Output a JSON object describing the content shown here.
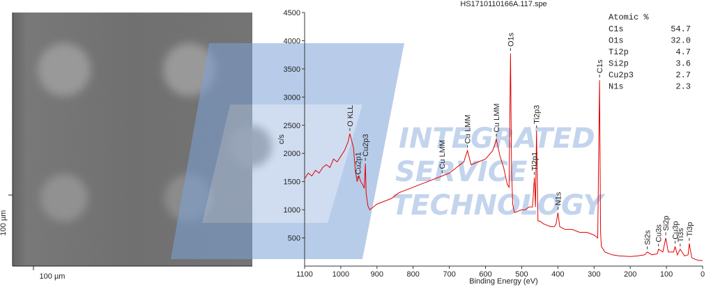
{
  "image_panel": {
    "scale_y_label": "100 µm",
    "scale_x_label": "100 µm"
  },
  "watermark": {
    "lines": [
      "INTEGRATED",
      "SERVICE",
      "TECHNOLOGY"
    ]
  },
  "chart_data": {
    "type": "line",
    "title": "HS1710110166A.117.spe",
    "x_label": "Binding Energy (eV)",
    "y_label": "c/s",
    "xlim": [
      1100,
      0
    ],
    "ylim": [
      0,
      4500
    ],
    "xticks": [
      1100,
      1000,
      900,
      800,
      700,
      600,
      500,
      400,
      300,
      200,
      100,
      0
    ],
    "yticks": [
      500,
      1000,
      1500,
      2000,
      2500,
      3000,
      3500,
      4000,
      4500
    ],
    "x": [
      1100,
      1090,
      1080,
      1070,
      1060,
      1050,
      1040,
      1030,
      1020,
      1010,
      1000,
      990,
      980,
      975,
      965,
      960,
      955,
      950,
      945,
      940,
      935,
      932,
      930,
      925,
      920,
      910,
      900,
      880,
      860,
      840,
      820,
      800,
      780,
      760,
      740,
      720,
      700,
      680,
      660,
      650,
      640,
      620,
      600,
      580,
      570,
      560,
      550,
      540,
      535,
      531,
      528,
      525,
      520,
      500,
      490,
      480,
      470,
      465,
      462,
      459,
      455,
      450,
      440,
      420,
      410,
      405,
      400,
      395,
      380,
      360,
      340,
      320,
      300,
      290,
      285,
      282,
      280,
      270,
      250,
      230,
      200,
      180,
      160,
      153,
      140,
      125,
      122,
      110,
      102,
      95,
      80,
      76,
      70,
      62,
      50,
      40,
      37,
      30,
      20,
      10,
      0
    ],
    "series": [
      {
        "name": "spectrum",
        "color": "#e00000",
        "values": [
          1550,
          1650,
          1600,
          1700,
          1650,
          1750,
          1800,
          1750,
          1900,
          1850,
          1950,
          2050,
          2200,
          2350,
          2100,
          1700,
          1500,
          1600,
          1500,
          1450,
          1380,
          1820,
          1300,
          1070,
          1000,
          1050,
          1100,
          1150,
          1200,
          1300,
          1350,
          1400,
          1450,
          1500,
          1550,
          1600,
          1650,
          1750,
          1850,
          2050,
          1800,
          1850,
          1900,
          2050,
          2250,
          1950,
          1750,
          1450,
          1400,
          3770,
          1700,
          1100,
          950,
          1000,
          1000,
          1050,
          1050,
          1570,
          1050,
          2400,
          800,
          800,
          750,
          700,
          700,
          750,
          950,
          700,
          650,
          650,
          600,
          600,
          550,
          500,
          3300,
          600,
          350,
          250,
          200,
          180,
          170,
          180,
          200,
          250,
          200,
          220,
          300,
          250,
          500,
          250,
          250,
          350,
          200,
          300,
          180,
          200,
          400,
          150,
          120,
          100,
          100
        ]
      }
    ],
    "peaks": [
      {
        "label": "O KLL",
        "x": 975
      },
      {
        "label": "Cu2p1",
        "x": 953
      },
      {
        "label": "Cu2p3",
        "x": 932
      },
      {
        "label": "Cu LMM",
        "x": 720
      },
      {
        "label": "Cu LMM",
        "x": 650
      },
      {
        "label": "Cu LMM",
        "x": 570
      },
      {
        "label": "O1s",
        "x": 531
      },
      {
        "label": "Ti2p3",
        "x": 459
      },
      {
        "label": "Ti2p1",
        "x": 465
      },
      {
        "label": "N1s",
        "x": 400
      },
      {
        "label": "C1s",
        "x": 285
      },
      {
        "label": "Si2s",
        "x": 153
      },
      {
        "label": "Cu3s",
        "x": 122
      },
      {
        "label": "Si2p",
        "x": 102
      },
      {
        "label": "Cu3p",
        "x": 76
      },
      {
        "label": "Ti3s",
        "x": 62
      },
      {
        "label": "Ti3p",
        "x": 37
      }
    ],
    "composition": {
      "title": "Atomic %",
      "rows": [
        [
          "C1s",
          "54.7"
        ],
        [
          "O1s",
          "32.0"
        ],
        [
          "Ti2p",
          "4.7"
        ],
        [
          "Si2p",
          "3.6"
        ],
        [
          "Cu2p3",
          "2.7"
        ],
        [
          "N1s",
          "2.3"
        ]
      ]
    }
  }
}
